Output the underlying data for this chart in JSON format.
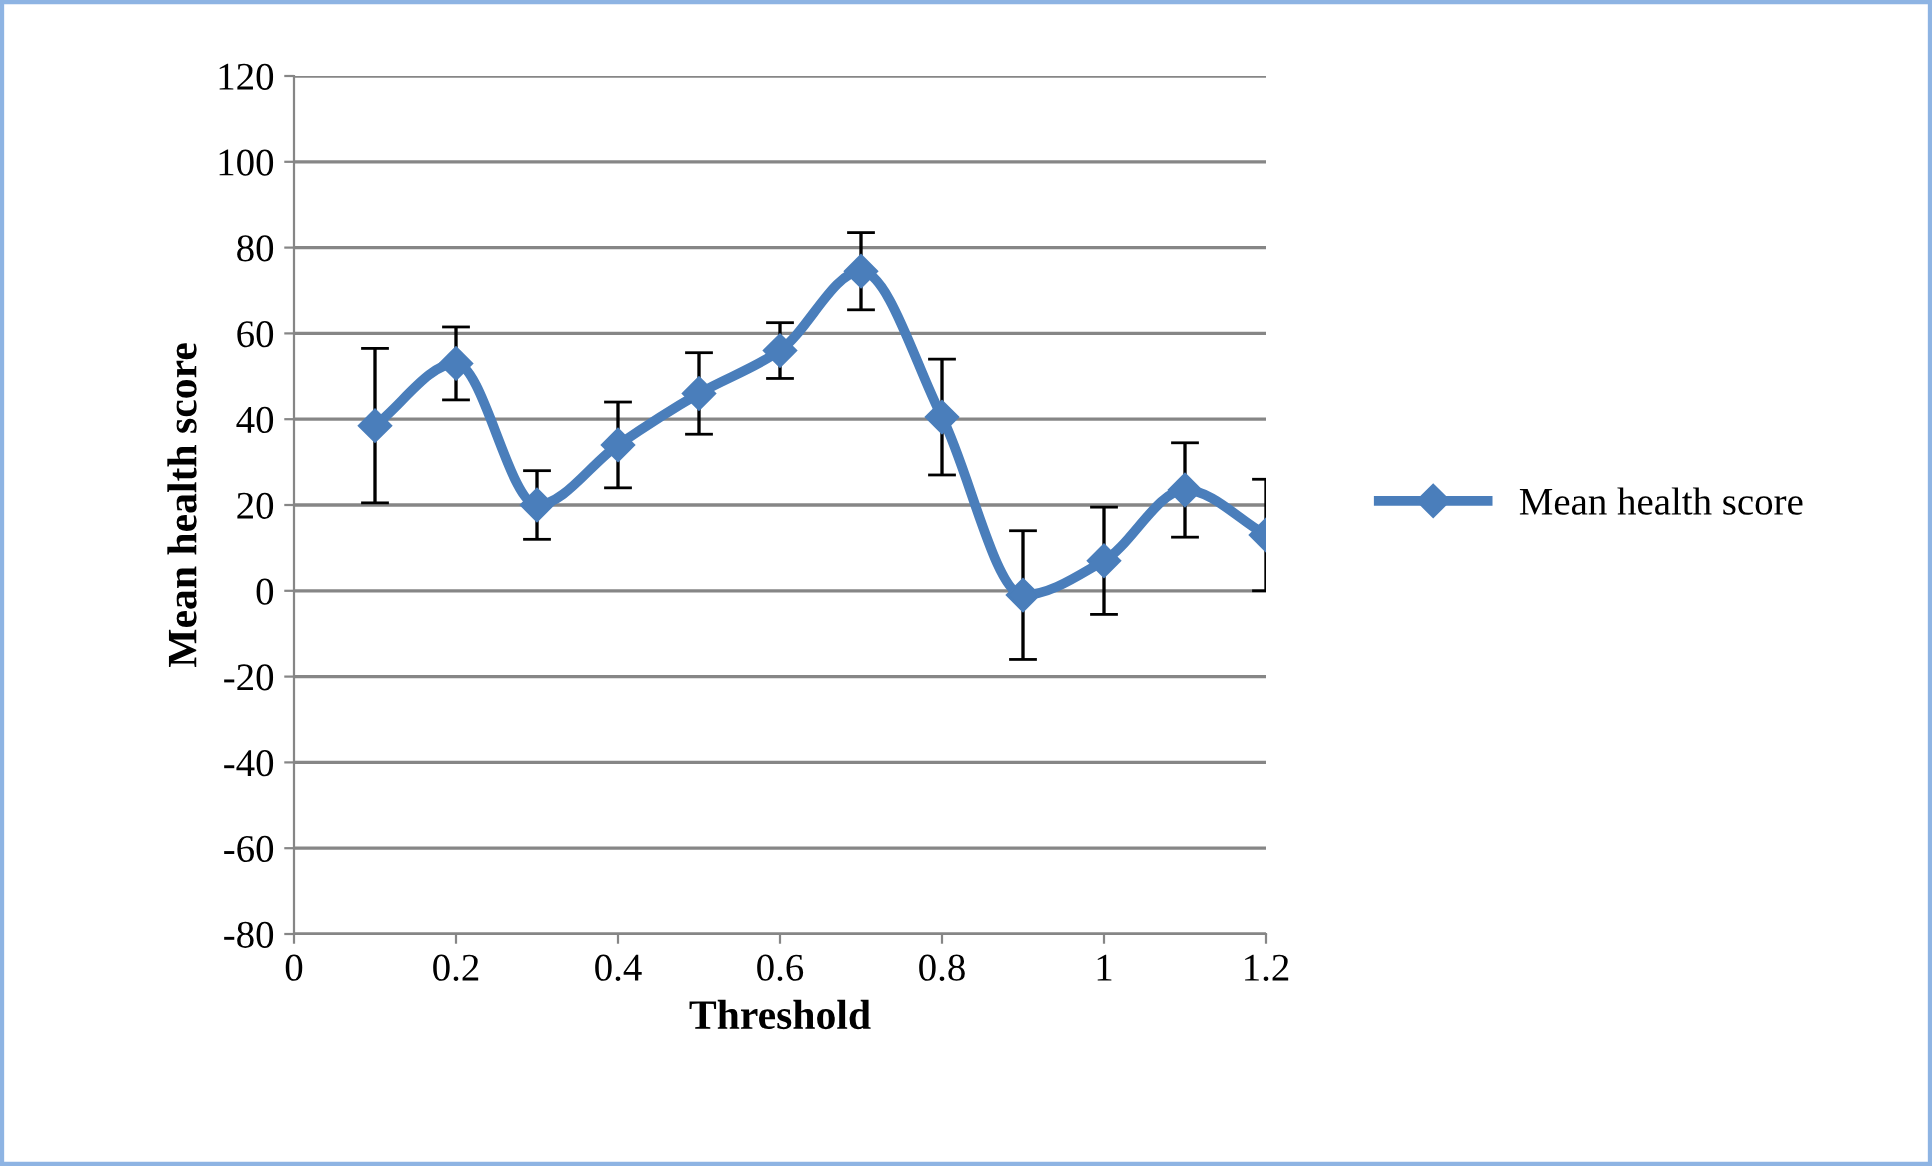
{
  "chart_data": {
    "type": "line",
    "xlabel": "Threshold",
    "ylabel": "Mean health score",
    "x": [
      0.1,
      0.2,
      0.3,
      0.4,
      0.5,
      0.6,
      0.7,
      0.8,
      0.9,
      1,
      1.1,
      1.2
    ],
    "series": [
      {
        "name": "Mean health score",
        "color": "#4a7ebb",
        "values": [
          38.5,
          53,
          20,
          34,
          46,
          56,
          74.5,
          40.5,
          -1,
          7,
          23.5,
          13
        ],
        "errors": [
          18,
          8.5,
          8,
          10,
          9.5,
          6.5,
          9,
          13.5,
          15,
          12.5,
          11,
          13
        ]
      }
    ],
    "xlim": [
      0,
      1.2
    ],
    "xticks": [
      0,
      0.2,
      0.4,
      0.6,
      0.8,
      1,
      1.2
    ],
    "ylim": [
      -80,
      120
    ],
    "yticks": [
      -80,
      -60,
      -40,
      -20,
      0,
      20,
      40,
      60,
      80,
      100,
      120
    ],
    "grid": "y",
    "legend": "right",
    "marker": "diamond",
    "line_style": "solid"
  }
}
